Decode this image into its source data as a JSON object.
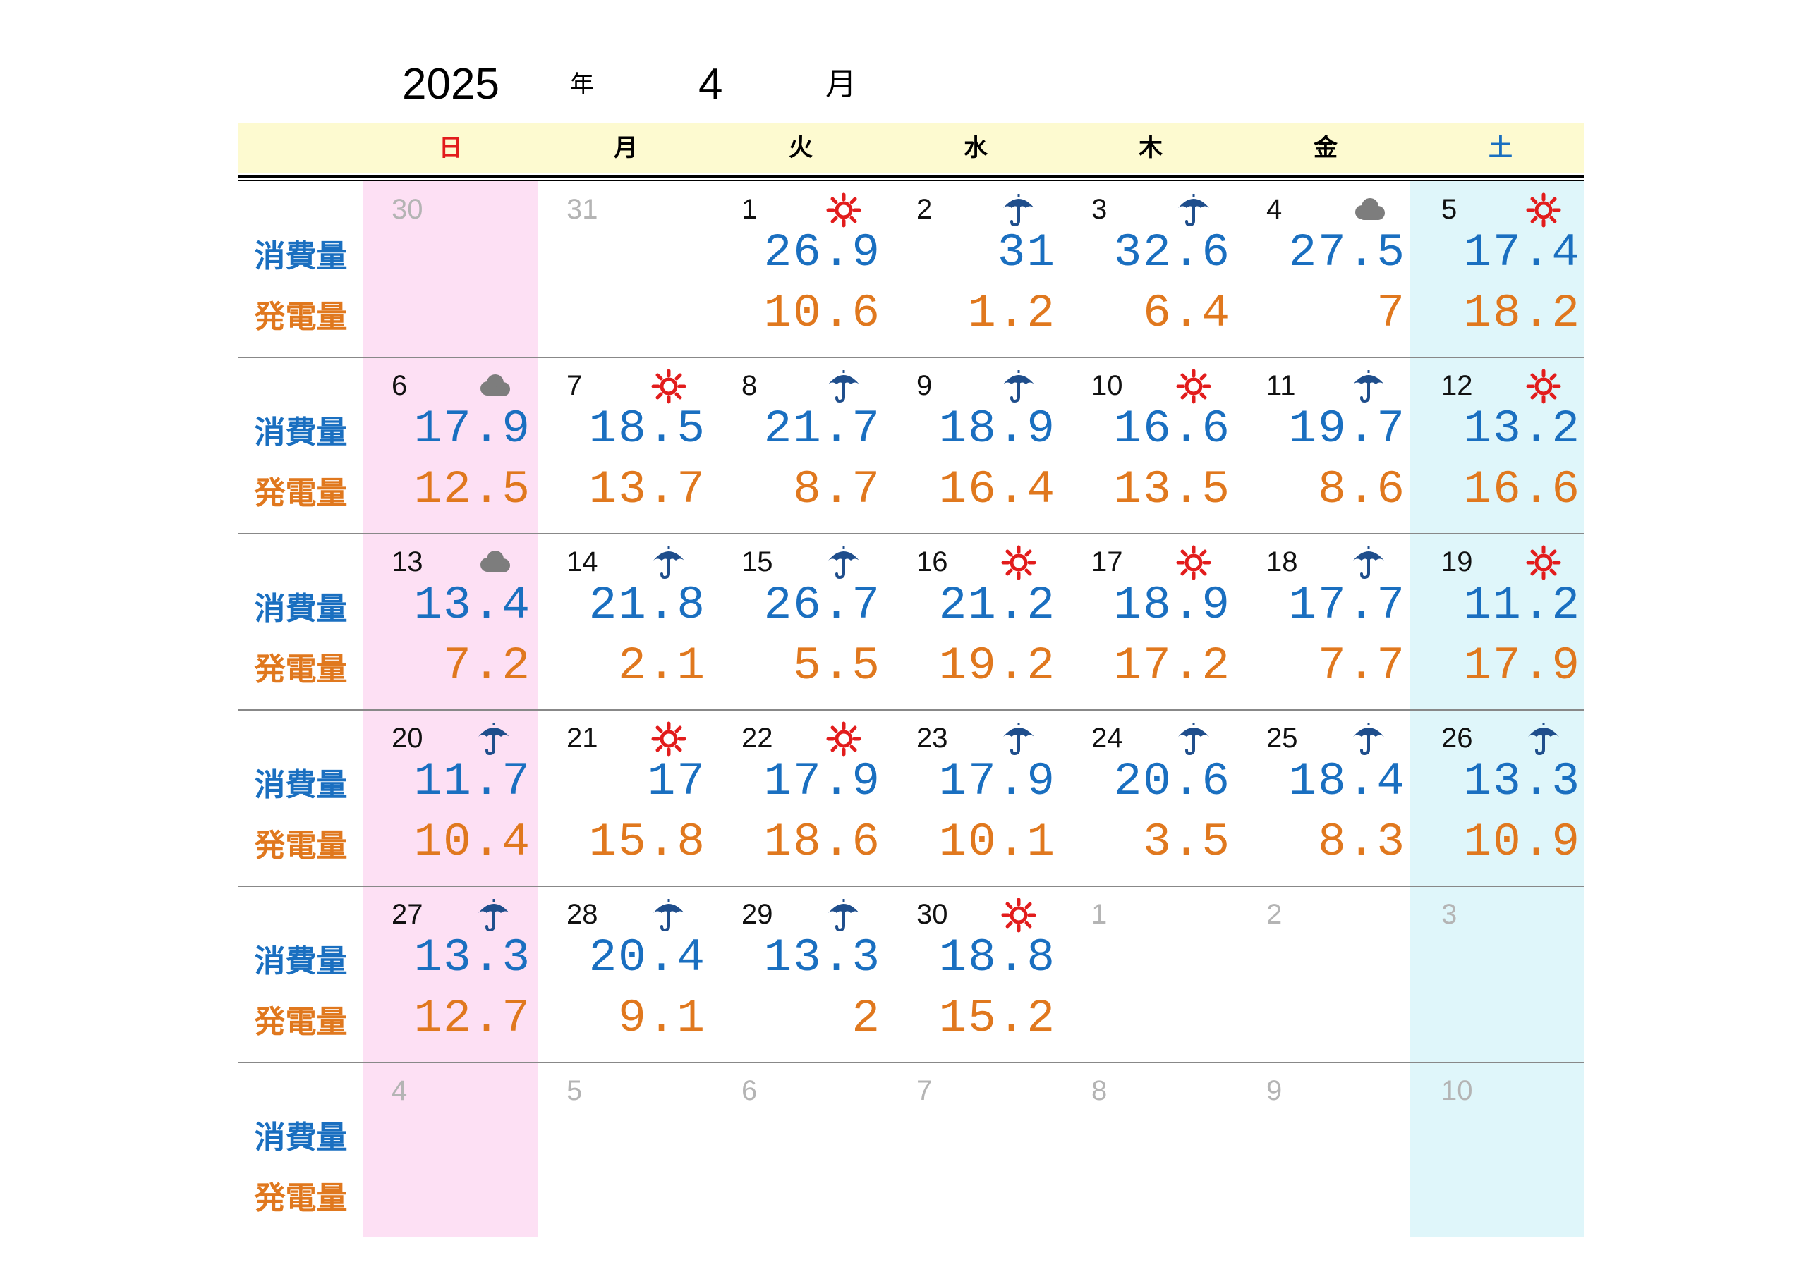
{
  "title": {
    "year": "2025",
    "year_suffix": "年",
    "month": "4",
    "month_suffix": "月"
  },
  "weekdays": [
    {
      "label": "日",
      "color": "#e21c1c"
    },
    {
      "label": "月",
      "color": "#000000"
    },
    {
      "label": "火",
      "color": "#000000"
    },
    {
      "label": "水",
      "color": "#000000"
    },
    {
      "label": "木",
      "color": "#000000"
    },
    {
      "label": "金",
      "color": "#000000"
    },
    {
      "label": "土",
      "color": "#1a6fc0"
    }
  ],
  "row_labels": {
    "consumption": "消費量",
    "generation": "発電量"
  },
  "colors": {
    "consumption": "#1a6fc0",
    "generation": "#e0781e",
    "sunday_bg": "#fde0f4",
    "saturday_bg": "#dff6fa",
    "header_bg": "#fdfad0"
  },
  "weeks": [
    [
      {
        "day": "30",
        "current": false,
        "weather": "",
        "consumption": "",
        "generation": ""
      },
      {
        "day": "31",
        "current": false,
        "weather": "",
        "consumption": "",
        "generation": ""
      },
      {
        "day": "1",
        "current": true,
        "weather": "sun-icon",
        "consumption": "26.9",
        "generation": "10.6"
      },
      {
        "day": "2",
        "current": true,
        "weather": "umbrella-icon",
        "consumption": "31",
        "generation": "1.2"
      },
      {
        "day": "3",
        "current": true,
        "weather": "umbrella-icon",
        "consumption": "32.6",
        "generation": "6.4"
      },
      {
        "day": "4",
        "current": true,
        "weather": "cloud-icon",
        "consumption": "27.5",
        "generation": "7"
      },
      {
        "day": "5",
        "current": true,
        "weather": "sun-icon",
        "consumption": "17.4",
        "generation": "18.2"
      }
    ],
    [
      {
        "day": "6",
        "current": true,
        "weather": "cloud-icon",
        "consumption": "17.9",
        "generation": "12.5"
      },
      {
        "day": "7",
        "current": true,
        "weather": "sun-icon",
        "consumption": "18.5",
        "generation": "13.7"
      },
      {
        "day": "8",
        "current": true,
        "weather": "umbrella-icon",
        "consumption": "21.7",
        "generation": "8.7"
      },
      {
        "day": "9",
        "current": true,
        "weather": "umbrella-icon",
        "consumption": "18.9",
        "generation": "16.4"
      },
      {
        "day": "10",
        "current": true,
        "weather": "sun-icon",
        "consumption": "16.6",
        "generation": "13.5"
      },
      {
        "day": "11",
        "current": true,
        "weather": "umbrella-icon",
        "consumption": "19.7",
        "generation": "8.6"
      },
      {
        "day": "12",
        "current": true,
        "weather": "sun-icon",
        "consumption": "13.2",
        "generation": "16.6"
      }
    ],
    [
      {
        "day": "13",
        "current": true,
        "weather": "cloud-icon",
        "consumption": "13.4",
        "generation": "7.2"
      },
      {
        "day": "14",
        "current": true,
        "weather": "umbrella-icon",
        "consumption": "21.8",
        "generation": "2.1"
      },
      {
        "day": "15",
        "current": true,
        "weather": "umbrella-icon",
        "consumption": "26.7",
        "generation": "5.5"
      },
      {
        "day": "16",
        "current": true,
        "weather": "sun-icon",
        "consumption": "21.2",
        "generation": "19.2"
      },
      {
        "day": "17",
        "current": true,
        "weather": "sun-icon",
        "consumption": "18.9",
        "generation": "17.2"
      },
      {
        "day": "18",
        "current": true,
        "weather": "umbrella-icon",
        "consumption": "17.7",
        "generation": "7.7"
      },
      {
        "day": "19",
        "current": true,
        "weather": "sun-icon",
        "consumption": "11.2",
        "generation": "17.9"
      }
    ],
    [
      {
        "day": "20",
        "current": true,
        "weather": "umbrella-icon",
        "consumption": "11.7",
        "generation": "10.4"
      },
      {
        "day": "21",
        "current": true,
        "weather": "sun-icon",
        "consumption": "17",
        "generation": "15.8"
      },
      {
        "day": "22",
        "current": true,
        "weather": "sun-icon",
        "consumption": "17.9",
        "generation": "18.6"
      },
      {
        "day": "23",
        "current": true,
        "weather": "umbrella-icon",
        "consumption": "17.9",
        "generation": "10.1"
      },
      {
        "day": "24",
        "current": true,
        "weather": "umbrella-icon",
        "consumption": "20.6",
        "generation": "3.5"
      },
      {
        "day": "25",
        "current": true,
        "weather": "umbrella-icon",
        "consumption": "18.4",
        "generation": "8.3"
      },
      {
        "day": "26",
        "current": true,
        "weather": "umbrella-icon",
        "consumption": "13.3",
        "generation": "10.9"
      }
    ],
    [
      {
        "day": "27",
        "current": true,
        "weather": "umbrella-icon",
        "consumption": "13.3",
        "generation": "12.7"
      },
      {
        "day": "28",
        "current": true,
        "weather": "umbrella-icon",
        "consumption": "20.4",
        "generation": "9.1"
      },
      {
        "day": "29",
        "current": true,
        "weather": "umbrella-icon",
        "consumption": "13.3",
        "generation": "2"
      },
      {
        "day": "30",
        "current": true,
        "weather": "sun-icon",
        "consumption": "18.8",
        "generation": "15.2"
      },
      {
        "day": "1",
        "current": false,
        "weather": "",
        "consumption": "",
        "generation": ""
      },
      {
        "day": "2",
        "current": false,
        "weather": "",
        "consumption": "",
        "generation": ""
      },
      {
        "day": "3",
        "current": false,
        "weather": "",
        "consumption": "",
        "generation": ""
      }
    ],
    [
      {
        "day": "4",
        "current": false,
        "weather": "",
        "consumption": "",
        "generation": ""
      },
      {
        "day": "5",
        "current": false,
        "weather": "",
        "consumption": "",
        "generation": ""
      },
      {
        "day": "6",
        "current": false,
        "weather": "",
        "consumption": "",
        "generation": ""
      },
      {
        "day": "7",
        "current": false,
        "weather": "",
        "consumption": "",
        "generation": ""
      },
      {
        "day": "8",
        "current": false,
        "weather": "",
        "consumption": "",
        "generation": ""
      },
      {
        "day": "9",
        "current": false,
        "weather": "",
        "consumption": "",
        "generation": ""
      },
      {
        "day": "10",
        "current": false,
        "weather": "",
        "consumption": "",
        "generation": ""
      }
    ]
  ]
}
